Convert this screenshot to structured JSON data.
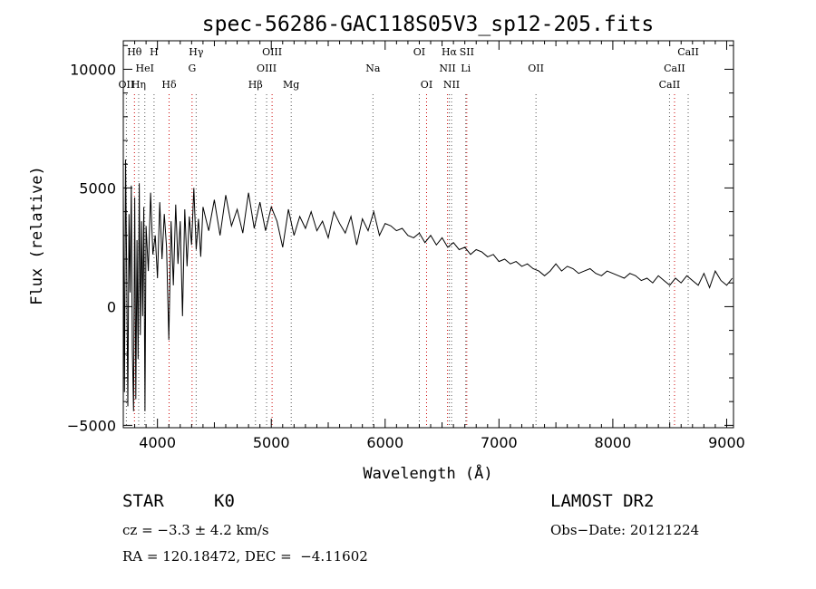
{
  "chart_data": {
    "type": "line",
    "title": "spec-56286-GAC118S05V3_sp12-205.fits",
    "xlabel": "Wavelength (Å)",
    "ylabel": "Flux (relative)",
    "xlim": [
      3700,
      9060
    ],
    "ylim": [
      -5100,
      11200
    ],
    "xticks": [
      4000,
      5000,
      6000,
      7000,
      8000,
      9000
    ],
    "xtick_labels": [
      "4000",
      "5000",
      "6000",
      "7000",
      "8000",
      "9000"
    ],
    "yticks": [
      -5000,
      0,
      5000,
      10000
    ],
    "ytick_labels": [
      "−5000",
      "0",
      "5000",
      "10000"
    ],
    "grid": false,
    "series": [
      {
        "color": "#000000",
        "x": [
          3700,
          3710,
          3720,
          3730,
          3740,
          3750,
          3760,
          3770,
          3780,
          3790,
          3800,
          3810,
          3820,
          3830,
          3840,
          3850,
          3860,
          3870,
          3880,
          3890,
          3900,
          3920,
          3940,
          3960,
          3980,
          4000,
          4020,
          4040,
          4060,
          4080,
          4100,
          4120,
          4140,
          4160,
          4180,
          4200,
          4220,
          4240,
          4260,
          4280,
          4300,
          4320,
          4340,
          4360,
          4380,
          4400,
          4450,
          4500,
          4550,
          4600,
          4650,
          4700,
          4750,
          4800,
          4850,
          4900,
          4950,
          5000,
          5050,
          5100,
          5150,
          5200,
          5250,
          5300,
          5350,
          5400,
          5450,
          5500,
          5550,
          5600,
          5650,
          5700,
          5750,
          5800,
          5850,
          5900,
          5950,
          6000,
          6050,
          6100,
          6150,
          6200,
          6250,
          6300,
          6350,
          6400,
          6450,
          6500,
          6550,
          6600,
          6650,
          6700,
          6750,
          6800,
          6850,
          6900,
          6950,
          7000,
          7050,
          7100,
          7150,
          7200,
          7250,
          7300,
          7350,
          7400,
          7450,
          7500,
          7550,
          7600,
          7650,
          7700,
          7750,
          7800,
          7850,
          7900,
          7950,
          8000,
          8050,
          8100,
          8150,
          8200,
          8250,
          8300,
          8350,
          8400,
          8450,
          8500,
          8550,
          8600,
          8650,
          8700,
          8750,
          8800,
          8850,
          8900,
          8950,
          9000,
          9050
        ],
        "y": [
          4800,
          -3600,
          6200,
          1200,
          -4200,
          3900,
          600,
          5100,
          -1800,
          -4400,
          4600,
          -3900,
          2800,
          -2200,
          5200,
          -1200,
          3600,
          -400,
          4200,
          -4400,
          3400,
          1500,
          4800,
          2200,
          3000,
          1200,
          4400,
          2000,
          3900,
          2500,
          -1400,
          3600,
          900,
          4300,
          1800,
          3600,
          -400,
          4100,
          1700,
          3800,
          2600,
          5000,
          2400,
          3700,
          2100,
          4200,
          3200,
          4500,
          3000,
          4700,
          3400,
          4100,
          3100,
          4800,
          3300,
          4400,
          3200,
          4200,
          3600,
          2500,
          4100,
          3000,
          3800,
          3300,
          4000,
          3200,
          3600,
          2900,
          4000,
          3500,
          3100,
          3800,
          2600,
          3700,
          3200,
          4000,
          3000,
          3500,
          3400,
          3200,
          3300,
          3000,
          2900,
          3100,
          2700,
          3000,
          2600,
          2900,
          2500,
          2700,
          2400,
          2500,
          2200,
          2400,
          2300,
          2100,
          2200,
          1900,
          2000,
          1800,
          1900,
          1700,
          1800,
          1600,
          1500,
          1300,
          1500,
          1800,
          1500,
          1700,
          1600,
          1400,
          1500,
          1600,
          1400,
          1300,
          1500,
          1400,
          1300,
          1200,
          1400,
          1300,
          1100,
          1200,
          1000,
          1300,
          1100,
          900,
          1200,
          1000,
          1300,
          1100,
          900,
          1400,
          800,
          1500,
          1100,
          900,
          1200
        ]
      }
    ],
    "line_markers": [
      {
        "label": "Hθ",
        "x": 3798,
        "row": 0
      },
      {
        "label": "H",
        "x": 3970,
        "row": 0
      },
      {
        "label": "Hγ",
        "x": 4340,
        "row": 0
      },
      {
        "label": "OIII",
        "x": 5007,
        "row": 0
      },
      {
        "label": "OI",
        "x": 6300,
        "row": 0
      },
      {
        "label": "Hα",
        "x": 6563,
        "row": 0
      },
      {
        "label": "SII",
        "x": 6717,
        "row": 0
      },
      {
        "label": "CaII",
        "x": 8662,
        "row": 0
      },
      {
        "label": "HeI",
        "x": 3889,
        "row": 1
      },
      {
        "label": "G",
        "x": 4304,
        "row": 1
      },
      {
        "label": "OIII",
        "x": 4959,
        "row": 1
      },
      {
        "label": "Na",
        "x": 5893,
        "row": 1
      },
      {
        "label": "NII",
        "x": 6548,
        "row": 1
      },
      {
        "label": "Li",
        "x": 6708,
        "row": 1
      },
      {
        "label": "OII",
        "x": 7325,
        "row": 1
      },
      {
        "label": "CaII",
        "x": 8542,
        "row": 1
      },
      {
        "label": "OII",
        "x": 3727,
        "row": 2
      },
      {
        "label": "Hη",
        "x": 3835,
        "row": 2
      },
      {
        "label": "Hδ",
        "x": 4102,
        "row": 2
      },
      {
        "label": "Hβ",
        "x": 4861,
        "row": 2
      },
      {
        "label": "Mg",
        "x": 5175,
        "row": 2
      },
      {
        "label": "OI",
        "x": 6364,
        "row": 2
      },
      {
        "label": "NII",
        "x": 6583,
        "row": 2
      },
      {
        "label": "CaII",
        "x": 8498,
        "row": 2
      }
    ],
    "marker_colors": {
      "emission": "#cc0000",
      "absorption": "#555555"
    }
  },
  "info": {
    "object_class": "STAR",
    "subclass": "K0",
    "survey": "LAMOST DR2",
    "cz": "cz = −3.3 ± 4.2 km/s",
    "obs_date": "Obs−Date: 20121224",
    "coords": "RA = 120.18472, DEC =  −4.11602"
  }
}
